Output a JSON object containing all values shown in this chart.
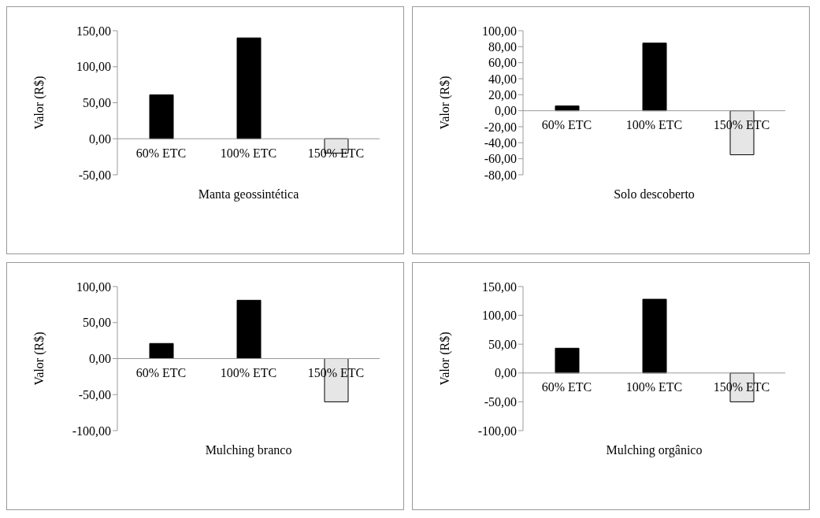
{
  "chart_data": [
    {
      "type": "bar",
      "xlabel": "Manta geossintética",
      "ylabel": "Valor (R$)",
      "categories": [
        "60% ETC",
        "100% ETC",
        "150% ETC"
      ],
      "values": [
        61,
        140,
        -20
      ],
      "colors": [
        "#000000",
        "#000000",
        "#e6e6e6"
      ],
      "ylim": [
        -50,
        150
      ],
      "yticks": [
        {
          "value": -50,
          "label": "-50,00"
        },
        {
          "value": 0,
          "label": "0,00"
        },
        {
          "value": 50,
          "label": "50,00"
        },
        {
          "value": 100,
          "label": "100,00"
        },
        {
          "value": 150,
          "label": "150,00"
        }
      ],
      "grid": false,
      "legend": false
    },
    {
      "type": "bar",
      "xlabel": "Solo descoberto",
      "ylabel": "Valor (R$)",
      "categories": [
        "60% ETC",
        "100% ETC",
        "150% ETC"
      ],
      "values": [
        6,
        84.5,
        -55
      ],
      "colors": [
        "#000000",
        "#000000",
        "#e6e6e6"
      ],
      "ylim": [
        -80,
        100
      ],
      "yticks": [
        {
          "value": -80,
          "label": "-80,00"
        },
        {
          "value": -60,
          "label": "-60,00"
        },
        {
          "value": -40,
          "label": "-40,00"
        },
        {
          "value": -20,
          "label": "-20,00"
        },
        {
          "value": 0,
          "label": "0,00"
        },
        {
          "value": 20,
          "label": "20,00"
        },
        {
          "value": 40,
          "label": "40,00"
        },
        {
          "value": 60,
          "label": "60,00"
        },
        {
          "value": 80,
          "label": "80,00"
        },
        {
          "value": 100,
          "label": "100,00"
        }
      ],
      "grid": false,
      "legend": false
    },
    {
      "type": "bar",
      "xlabel": "Mulching branco",
      "ylabel": "Valor (R$)",
      "categories": [
        "60% ETC",
        "100% ETC",
        "150% ETC"
      ],
      "values": [
        21,
        81,
        -60
      ],
      "colors": [
        "#000000",
        "#000000",
        "#e6e6e6"
      ],
      "ylim": [
        -100,
        100
      ],
      "yticks": [
        {
          "value": -100,
          "label": "-100,00"
        },
        {
          "value": -50,
          "label": "-50,00"
        },
        {
          "value": 0,
          "label": "0,00"
        },
        {
          "value": 50,
          "label": "50,00"
        },
        {
          "value": 100,
          "label": "100,00"
        }
      ],
      "grid": false,
      "legend": false
    },
    {
      "type": "bar",
      "xlabel": "Mulching orgânico",
      "ylabel": "Valor (R$)",
      "categories": [
        "60% ETC",
        "100% ETC",
        "150% ETC"
      ],
      "values": [
        43,
        128,
        -50
      ],
      "colors": [
        "#000000",
        "#000000",
        "#e6e6e6"
      ],
      "ylim": [
        -100,
        150
      ],
      "yticks": [
        {
          "value": -100,
          "label": "-100,00"
        },
        {
          "value": -50,
          "label": "-50,00"
        },
        {
          "value": 0,
          "label": "0,00"
        },
        {
          "value": 50,
          "label": "50,00"
        },
        {
          "value": 100,
          "label": "100,00"
        },
        {
          "value": 150,
          "label": "150,00"
        }
      ],
      "grid": false,
      "legend": false
    }
  ]
}
